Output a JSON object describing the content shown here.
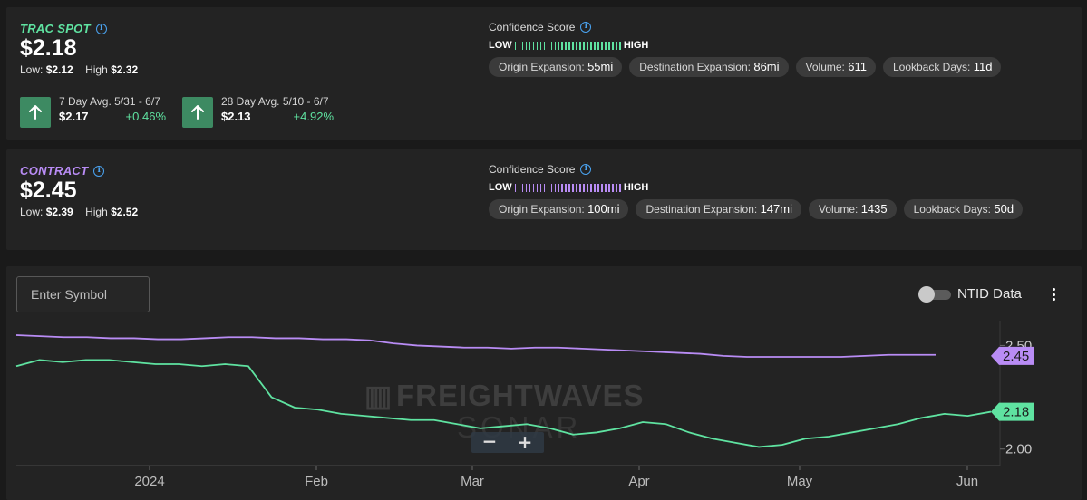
{
  "spot": {
    "ticker": "TRAC SPOT",
    "price": "$2.18",
    "low_label": "Low:",
    "low": "$2.12",
    "high_label": "High",
    "high": "$2.32",
    "color": "#5fe3a1",
    "avg7": {
      "label": "7 Day Avg. 5/31 - 6/7",
      "value": "$2.17",
      "change": "+0.46%"
    },
    "avg28": {
      "label": "28 Day Avg. 5/10 - 6/7",
      "value": "$2.13",
      "change": "+4.92%"
    },
    "confidence": {
      "title": "Confidence Score",
      "low": "LOW",
      "high": "HIGH",
      "origin_label": "Origin Expansion:",
      "origin_value": "55mi",
      "dest_label": "Destination Expansion:",
      "dest_value": "86mi",
      "volume_label": "Volume:",
      "volume_value": "611",
      "lookback_label": "Lookback Days:",
      "lookback_value": "11d"
    }
  },
  "contract": {
    "ticker": "CONTRACT",
    "price": "$2.45",
    "low_label": "Low:",
    "low": "$2.39",
    "high_label": "High",
    "high": "$2.52",
    "color": "#b98cf5",
    "confidence": {
      "title": "Confidence Score",
      "low": "LOW",
      "high": "HIGH",
      "origin_label": "Origin Expansion:",
      "origin_value": "100mi",
      "dest_label": "Destination Expansion:",
      "dest_value": "147mi",
      "volume_label": "Volume:",
      "volume_value": "1435",
      "lookback_label": "Lookback Days:",
      "lookback_value": "50d"
    }
  },
  "controls": {
    "symbol_placeholder": "Enter Symbol",
    "ntid_label": "NTID Data",
    "ntid_on": false,
    "zoom_out": "−",
    "zoom_in": "+"
  },
  "chart_data": {
    "type": "line",
    "watermark_top": "FREIGHTWAVES",
    "watermark_bottom": "SONAR",
    "x_ticks": [
      "2024",
      "Feb",
      "Mar",
      "Apr",
      "May",
      "Jun"
    ],
    "y_ticks": [
      "2.50",
      "2.00"
    ],
    "ylim": [
      1.92,
      2.62
    ],
    "grid": false,
    "series": [
      {
        "name": "CONTRACT",
        "color": "#b98cf5",
        "last_label": "2.45",
        "values": [
          2.55,
          2.545,
          2.54,
          2.54,
          2.535,
          2.535,
          2.53,
          2.53,
          2.535,
          2.54,
          2.54,
          2.535,
          2.535,
          2.53,
          2.53,
          2.525,
          2.51,
          2.5,
          2.495,
          2.49,
          2.49,
          2.485,
          2.49,
          2.49,
          2.485,
          2.48,
          2.475,
          2.47,
          2.465,
          2.46,
          2.45,
          2.445,
          2.445,
          2.445,
          2.445,
          2.445,
          2.45,
          2.455,
          2.455,
          2.455
        ]
      },
      {
        "name": "TRAC SPOT",
        "color": "#5fe3a1",
        "last_label": "2.18",
        "values": [
          2.4,
          2.43,
          2.42,
          2.43,
          2.43,
          2.42,
          2.41,
          2.41,
          2.4,
          2.41,
          2.4,
          2.25,
          2.2,
          2.19,
          2.17,
          2.16,
          2.15,
          2.14,
          2.14,
          2.12,
          2.1,
          2.11,
          2.12,
          2.1,
          2.07,
          2.08,
          2.1,
          2.13,
          2.12,
          2.08,
          2.05,
          2.03,
          2.01,
          2.02,
          2.05,
          2.06,
          2.08,
          2.1,
          2.12,
          2.15,
          2.17,
          2.16,
          2.18
        ]
      }
    ]
  }
}
